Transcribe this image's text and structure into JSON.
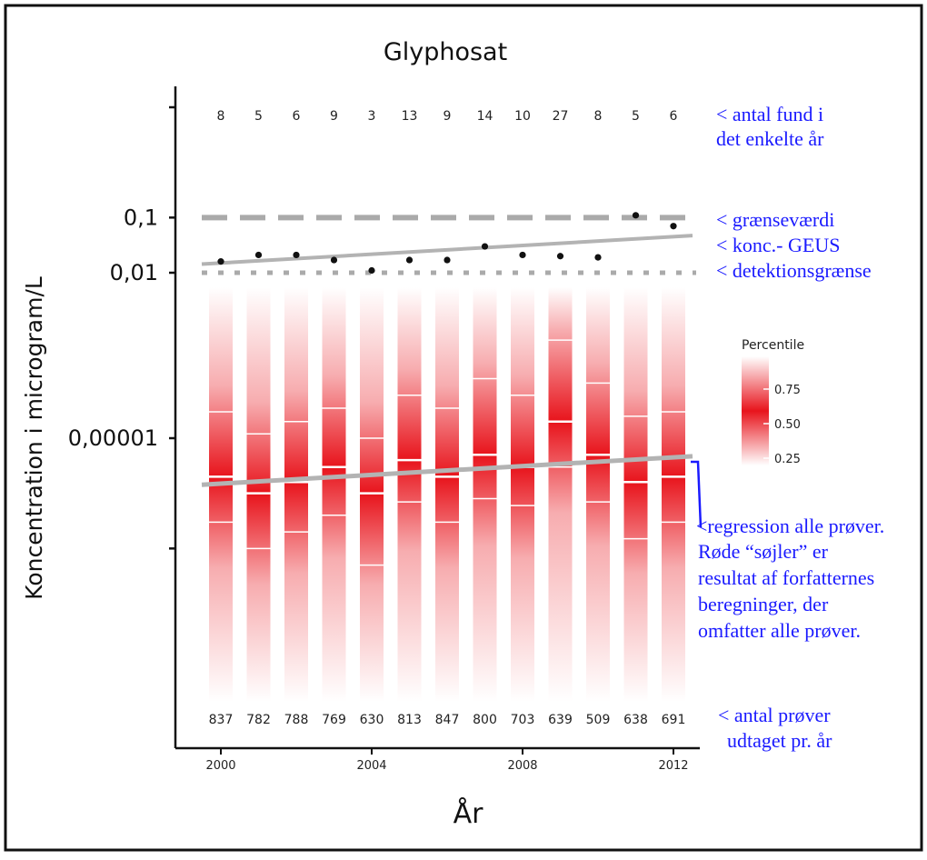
{
  "chart_data": {
    "type": "heatmap",
    "title": "Glyphosat",
    "xlabel": "År",
    "ylabel": "Koncentration i microgram/L",
    "years": [
      2000,
      2001,
      2002,
      2003,
      2004,
      2005,
      2006,
      2007,
      2008,
      2009,
      2010,
      2011,
      2012
    ],
    "x_ticks": [
      "2000",
      "2004",
      "2008",
      "2012"
    ],
    "x_range": [
      2000,
      2012
    ],
    "y_scale": "log10",
    "y_ticks": [
      {
        "value": 1e-07,
        "label": ""
      },
      {
        "value": 1e-05,
        "label": "0,00001"
      },
      {
        "value": 0.01,
        "label": "0,01"
      },
      {
        "value": 0.1,
        "label": "0,1"
      },
      {
        "value": 10,
        "label": ""
      }
    ],
    "found_counts": [
      "8",
      "5",
      "6",
      "9",
      "3",
      "13",
      "9",
      "14",
      "10",
      "27",
      "8",
      "5",
      "6"
    ],
    "sample_counts": [
      "837",
      "782",
      "788",
      "769",
      "630",
      "813",
      "847",
      "800",
      "703",
      "639",
      "509",
      "638",
      "691"
    ],
    "found_concentration": [
      0.016,
      0.021,
      0.021,
      0.017,
      0.011,
      0.017,
      0.017,
      0.03,
      0.021,
      0.02,
      0.019,
      0.11,
      0.07
    ],
    "percentile_columns": [
      {
        "year": 2000,
        "p25": 3e-07,
        "p50": 2e-06,
        "p75": 3e-05
      },
      {
        "year": 2001,
        "p25": 1e-07,
        "p50": 1e-06,
        "p75": 1.2e-05
      },
      {
        "year": 2002,
        "p25": 2e-07,
        "p50": 1.6e-06,
        "p75": 2e-05
      },
      {
        "year": 2003,
        "p25": 4e-07,
        "p50": 3e-06,
        "p75": 3.5e-05
      },
      {
        "year": 2004,
        "p25": 5e-08,
        "p50": 1e-06,
        "p75": 1e-05
      },
      {
        "year": 2005,
        "p25": 7e-07,
        "p50": 4e-06,
        "p75": 6e-05
      },
      {
        "year": 2006,
        "p25": 3e-07,
        "p50": 2e-06,
        "p75": 3.5e-05
      },
      {
        "year": 2007,
        "p25": 8e-07,
        "p50": 5e-06,
        "p75": 0.00012
      },
      {
        "year": 2008,
        "p25": 6e-07,
        "p50": 3e-06,
        "p75": 6e-05
      },
      {
        "year": 2009,
        "p25": 3e-06,
        "p50": 2e-05,
        "p75": 0.0006
      },
      {
        "year": 2010,
        "p25": 7e-07,
        "p50": 5e-06,
        "p75": 0.0001
      },
      {
        "year": 2011,
        "p25": 1.5e-07,
        "p50": 1.6e-06,
        "p75": 2.5e-05
      },
      {
        "year": 2012,
        "p25": 3e-07,
        "p50": 2e-06,
        "p75": 3e-05
      }
    ],
    "reference_lines": [
      {
        "name": "grænseværdi",
        "value": 0.1,
        "style": "dashed"
      },
      {
        "name": "detektionsgrænse",
        "value": 0.01,
        "style": "dotted"
      }
    ],
    "regression_found": {
      "from": [
        2000,
        0.015
      ],
      "to": [
        2012,
        0.045
      ]
    },
    "regression_all": {
      "from": [
        2000,
        1.5e-06
      ],
      "to": [
        2012,
        4.5e-06
      ]
    },
    "legend": {
      "title": "Percentile",
      "ticks": [
        "0.75",
        "0.50",
        "0.25"
      ]
    }
  },
  "annotations": {
    "found_count": [
      "< antal fund i",
      "det enkelte år"
    ],
    "limit_value": "< grænseværdi",
    "geus": "< konc.- GEUS",
    "detection": "< detektionsgrænse",
    "regression": [
      "<regression alle prøver.",
      "Røde “søjler” er",
      "resultat af forfatternes",
      "beregninger, der",
      "omfatter alle prøver."
    ],
    "sample_count": [
      "< antal prøver",
      "udtaget pr. år"
    ]
  },
  "colors": {
    "accent_red": "#e8141c",
    "annotation_blue": "#1a1aff",
    "reference_gray": "#aaaaaa",
    "regression_gray": "#b3b3b3"
  }
}
